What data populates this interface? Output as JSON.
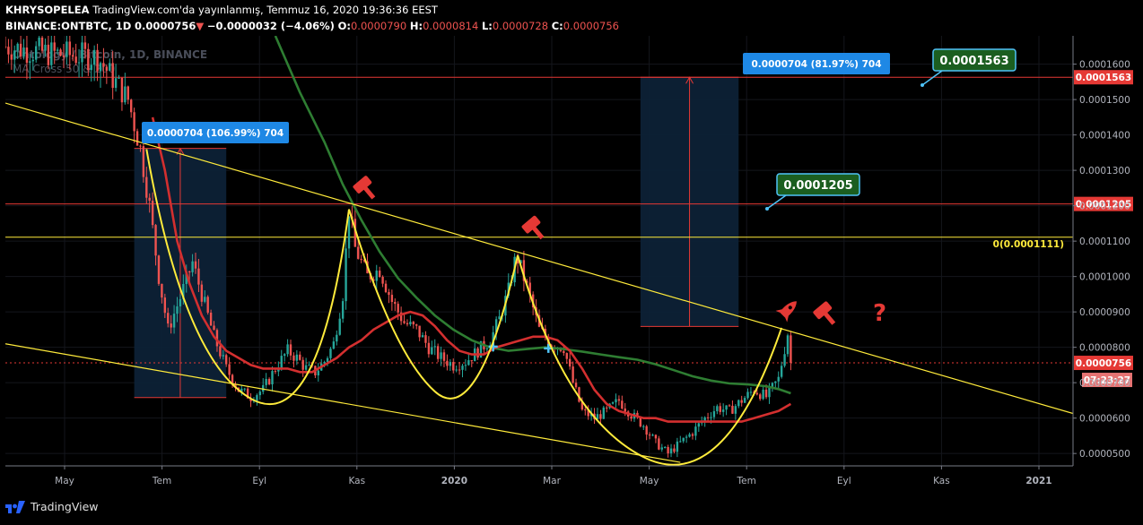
{
  "header": {
    "author": "KHRYSOPELEA",
    "published": "TradingView.com'da yayınlanmış, Temmuz 16, 2020 19:36:36 EEST",
    "symbol": "BINANCE:ONTBTC, 1D",
    "price": "0.0000756",
    "arrow": "▼",
    "change": "−0.0000032 (−4.06%)",
    "o_label": "O:",
    "o_value": "0.0000790",
    "h_label": "H:",
    "h_value": "0.0000814",
    "l_label": "L:",
    "l_value": "0.0000728",
    "c_label": "C:",
    "c_value": "0.0000756"
  },
  "watermark": {
    "line1": "Ontology / Bitcoin, 1D, BINANCE",
    "line2": "MA Cross 50 & 200"
  },
  "colors": {
    "background": "#000000",
    "bull": "#26a69a",
    "bear": "#ef5350",
    "ma50": "#d32f2f",
    "ma200": "#2e7d32",
    "trend": "#ffeb3b",
    "level_line": "#e53935",
    "range_box": "#0d2136",
    "label_blue": "#1e88e5",
    "label_green": "#1b5e20",
    "axis_text": "#b2b5be",
    "icon_red": "#e53935"
  },
  "chart_data": {
    "type": "candlestick",
    "symbol": "BINANCE:ONTBTC",
    "timeframe": "1D",
    "x_ticks": [
      "May",
      "Tem",
      "Eyl",
      "Kas",
      "2020",
      "Mar",
      "May",
      "Tem",
      "Eyl",
      "Kas",
      "2021"
    ],
    "y_ticks": [
      "0.0001600",
      "0.0001500",
      "0.0001400",
      "0.0001300",
      "0.0001200",
      "0.0001100",
      "0.0001000",
      "0.0000900",
      "0.0000800",
      "0.0000700",
      "0.0000600",
      "0.0000500"
    ],
    "ylim": [
      4.65e-05,
      0.000168
    ],
    "series": [
      {
        "name": "price",
        "points": [
          [
            0,
            0.000165
          ],
          [
            15,
            0.000163
          ],
          [
            30,
            0.000162
          ],
          [
            40,
            0.00015
          ],
          [
            44,
            0.000136
          ],
          [
            47,
            0.00012
          ],
          [
            50,
            0.0001
          ],
          [
            53,
            8.5e-05
          ],
          [
            57,
            9.4e-05
          ],
          [
            61,
            0.000104
          ],
          [
            64,
            9.5e-05
          ],
          [
            68,
            8.3e-05
          ],
          [
            72,
            7.4e-05
          ],
          [
            76,
            6.8e-05
          ],
          [
            80,
            6.6e-05
          ],
          [
            84,
            6.8e-05
          ],
          [
            88,
            7.4e-05
          ],
          [
            92,
            7.9e-05
          ],
          [
            95,
            7.7e-05
          ],
          [
            98,
            7.4e-05
          ],
          [
            101,
            7.3e-05
          ],
          [
            104,
            7.6e-05
          ],
          [
            107,
            8.1e-05
          ],
          [
            110,
            9.5e-05
          ],
          [
            112,
            0.000119
          ],
          [
            114,
            0.000108
          ],
          [
            118,
            0.0001
          ],
          [
            122,
            0.000102
          ],
          [
            126,
            9.3e-05
          ],
          [
            130,
            8.7e-05
          ],
          [
            134,
            8.5e-05
          ],
          [
            138,
            8e-05
          ],
          [
            142,
            7.7e-05
          ],
          [
            146,
            7.5e-05
          ],
          [
            150,
            7.6e-05
          ],
          [
            154,
            7.9e-05
          ],
          [
            158,
            8.2e-05
          ],
          [
            161,
            8.8e-05
          ],
          [
            164,
            9.6e-05
          ],
          [
            166,
            0.000104
          ],
          [
            167,
            0.000105
          ],
          [
            170,
            9.7e-05
          ],
          [
            174,
            8.5e-05
          ],
          [
            178,
            8.1e-05
          ],
          [
            182,
            8e-05
          ],
          [
            185,
            7e-05
          ],
          [
            188,
            6.2e-05
          ],
          [
            192,
            6e-05
          ],
          [
            196,
            6.2e-05
          ],
          [
            200,
            6.5e-05
          ],
          [
            204,
            6.1e-05
          ],
          [
            208,
            5.8e-05
          ],
          [
            212,
            5.3e-05
          ],
          [
            216,
            5e-05
          ],
          [
            220,
            5.3e-05
          ],
          [
            224,
            5.6e-05
          ],
          [
            228,
            6e-05
          ],
          [
            232,
            6.3e-05
          ],
          [
            236,
            6.2e-05
          ],
          [
            240,
            6.5e-05
          ],
          [
            244,
            6.8e-05
          ],
          [
            248,
            6.6e-05
          ],
          [
            252,
            7.1e-05
          ],
          [
            255,
            8.4e-05
          ],
          [
            256,
            7.56e-05
          ]
        ]
      },
      {
        "name": "MA 50",
        "points": [
          [
            48,
            0.000145
          ],
          [
            52,
            0.00013
          ],
          [
            56,
            0.00011
          ],
          [
            60,
            9.8e-05
          ],
          [
            64,
            8.9e-05
          ],
          [
            68,
            8.3e-05
          ],
          [
            72,
            7.9e-05
          ],
          [
            76,
            7.7e-05
          ],
          [
            80,
            7.5e-05
          ],
          [
            84,
            7.4e-05
          ],
          [
            88,
            7.4e-05
          ],
          [
            92,
            7.4e-05
          ],
          [
            96,
            7.3e-05
          ],
          [
            100,
            7.3e-05
          ],
          [
            104,
            7.5e-05
          ],
          [
            108,
            7.7e-05
          ],
          [
            112,
            8e-05
          ],
          [
            116,
            8.2e-05
          ],
          [
            120,
            8.5e-05
          ],
          [
            124,
            8.7e-05
          ],
          [
            128,
            8.9e-05
          ],
          [
            132,
            9e-05
          ],
          [
            136,
            8.9e-05
          ],
          [
            140,
            8.6e-05
          ],
          [
            144,
            8.2e-05
          ],
          [
            148,
            7.9e-05
          ],
          [
            152,
            7.8e-05
          ],
          [
            156,
            7.8e-05
          ],
          [
            160,
            8e-05
          ],
          [
            164,
            8.1e-05
          ],
          [
            168,
            8.2e-05
          ],
          [
            172,
            8.3e-05
          ],
          [
            176,
            8.3e-05
          ],
          [
            180,
            8.2e-05
          ],
          [
            184,
            7.9e-05
          ],
          [
            188,
            7.4e-05
          ],
          [
            192,
            6.8e-05
          ],
          [
            196,
            6.4e-05
          ],
          [
            200,
            6.2e-05
          ],
          [
            204,
            6.1e-05
          ],
          [
            208,
            6e-05
          ],
          [
            212,
            6e-05
          ],
          [
            216,
            5.9e-05
          ],
          [
            220,
            5.9e-05
          ],
          [
            224,
            5.9e-05
          ],
          [
            228,
            5.9e-05
          ],
          [
            232,
            5.9e-05
          ],
          [
            236,
            5.9e-05
          ],
          [
            240,
            5.9e-05
          ],
          [
            244,
            6e-05
          ],
          [
            248,
            6.1e-05
          ],
          [
            252,
            6.2e-05
          ],
          [
            256,
            6.4e-05
          ]
        ]
      },
      {
        "name": "MA 200",
        "points": [
          [
            88,
            0.000168
          ],
          [
            96,
            0.000152
          ],
          [
            104,
            0.000138
          ],
          [
            110,
            0.000126
          ],
          [
            116,
            0.000116
          ],
          [
            122,
            0.000107
          ],
          [
            128,
            9.95e-05
          ],
          [
            134,
            9.4e-05
          ],
          [
            140,
            8.9e-05
          ],
          [
            146,
            8.5e-05
          ],
          [
            152,
            8.2e-05
          ],
          [
            158,
            8e-05
          ],
          [
            164,
            7.9e-05
          ],
          [
            170,
            7.95e-05
          ],
          [
            176,
            8e-05
          ],
          [
            182,
            7.95e-05
          ],
          [
            188,
            7.88e-05
          ],
          [
            194,
            7.8e-05
          ],
          [
            200,
            7.72e-05
          ],
          [
            206,
            7.65e-05
          ],
          [
            212,
            7.52e-05
          ],
          [
            218,
            7.35e-05
          ],
          [
            224,
            7.18e-05
          ],
          [
            230,
            7.06e-05
          ],
          [
            236,
            6.98e-05
          ],
          [
            242,
            6.95e-05
          ],
          [
            248,
            6.9e-05
          ],
          [
            252,
            6.82e-05
          ],
          [
            256,
            6.7e-05
          ]
        ]
      },
      {
        "name": "descending_resistance",
        "points": [
          [
            0,
            0.000149
          ],
          [
            348,
            6.13e-05
          ]
        ]
      },
      {
        "name": "descending_support",
        "points": [
          [
            0,
            8.1e-05
          ],
          [
            220,
            4.75e-05
          ]
        ]
      }
    ],
    "horizontal_levels": [
      {
        "price": 0.0001563,
        "label": "0.0001563"
      },
      {
        "price": 0.0001205,
        "label": "0.0001205"
      },
      {
        "price": 7.56e-05,
        "label": "0.0000756"
      }
    ],
    "fib_level": {
      "price": 0.0001111,
      "label": "0(0.0001111)"
    },
    "measures": [
      {
        "label": "0.0000704 (106.99%) 704",
        "from": 6.58e-05,
        "to": 0.0001362
      },
      {
        "label": "0.0000704 (81.97%) 704",
        "from": 8.59e-05,
        "to": 0.0001563
      }
    ],
    "callouts": [
      "0.0001563",
      "0.0001205"
    ],
    "current_price": {
      "value": "0.0000756",
      "countdown": "07:23:27"
    },
    "annotations": [
      "hammer",
      "hammer",
      "rocket",
      "hammer",
      "?"
    ]
  },
  "footer": {
    "brand": "TradingView"
  }
}
